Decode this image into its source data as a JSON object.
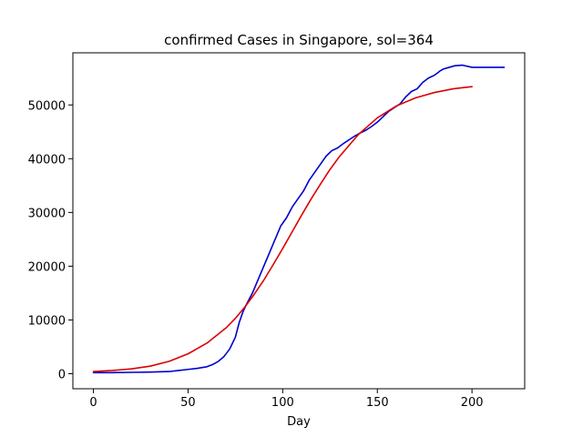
{
  "chart_data": {
    "type": "line",
    "title": "confirmed Cases in Singapore, sol=364",
    "xlabel": "Day",
    "ylabel": "",
    "xlim": [
      -10.85,
      227.85
    ],
    "ylim": [
      -2800,
      59700
    ],
    "xticks": [
      0,
      50,
      100,
      150,
      200
    ],
    "yticks": [
      0,
      10000,
      20000,
      30000,
      40000,
      50000
    ],
    "grid": false,
    "legend": "none",
    "series": [
      {
        "color": "#0000cc",
        "x": [
          0,
          10,
          20,
          30,
          40,
          45,
          50,
          55,
          60,
          63,
          66,
          69,
          72,
          75,
          77,
          79,
          81,
          84,
          87,
          90,
          93,
          96,
          99,
          102,
          105,
          108,
          111,
          114,
          117,
          120,
          123,
          126,
          129,
          132,
          135,
          138,
          141,
          144,
          147,
          150,
          153,
          156,
          159,
          162,
          165,
          168,
          171,
          174,
          177,
          180,
          182,
          183,
          185,
          188,
          191,
          195,
          200,
          205,
          210,
          217
        ],
        "y": [
          200,
          200,
          250,
          300,
          400,
          600,
          800,
          1000,
          1300,
          1700,
          2300,
          3200,
          4600,
          6800,
          9500,
          11500,
          13000,
          15000,
          17500,
          20000,
          22500,
          25000,
          27500,
          29000,
          31000,
          32500,
          34000,
          36000,
          37500,
          39000,
          40500,
          41500,
          42000,
          42800,
          43500,
          44200,
          44800,
          45300,
          46000,
          46800,
          47800,
          48800,
          49500,
          50200,
          51500,
          52500,
          53000,
          54200,
          55000,
          55500,
          56000,
          56300,
          56700,
          57000,
          57300,
          57400,
          57000,
          57000,
          57000,
          57000
        ]
      },
      {
        "color": "#dd0000",
        "x": [
          0,
          10,
          20,
          30,
          40,
          50,
          60,
          70,
          75,
          80,
          85,
          90,
          95,
          100,
          105,
          110,
          115,
          120,
          125,
          130,
          140,
          150,
          160,
          170,
          180,
          190,
          200
        ],
        "y": [
          400,
          600,
          900,
          1400,
          2300,
          3700,
          5700,
          8500,
          10300,
          12400,
          14800,
          17400,
          20300,
          23300,
          26400,
          29500,
          32500,
          35300,
          38000,
          40400,
          44500,
          47600,
          49800,
          51300,
          52300,
          53000,
          53400
        ]
      }
    ]
  }
}
